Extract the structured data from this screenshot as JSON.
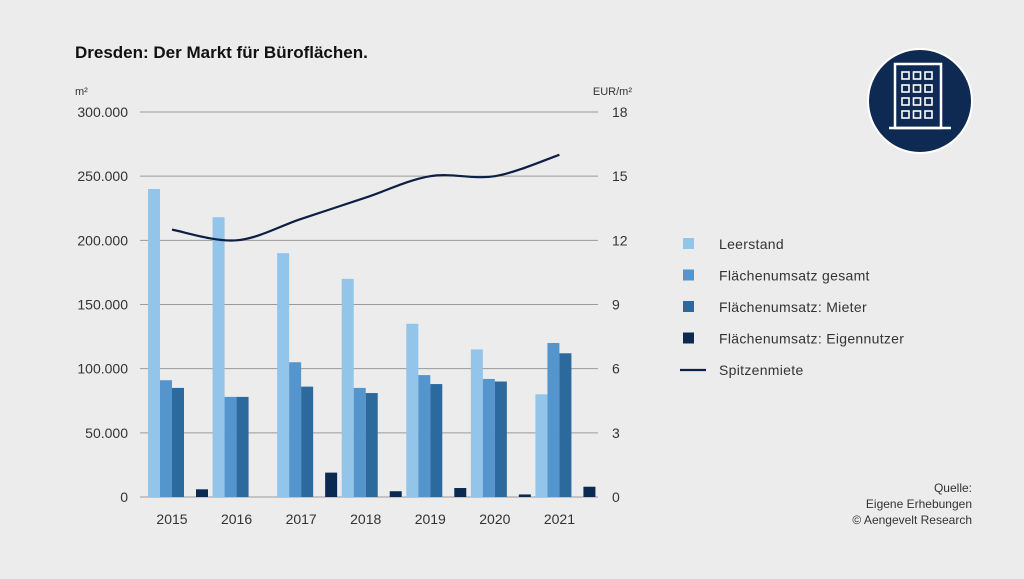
{
  "colors": {
    "background": "#ececec",
    "leerstand": "#93c4ea",
    "gesamt": "#5595cd",
    "mieter": "#2c6a9e",
    "eigennutzer": "#0b2a52",
    "spitzenmiete": "#0d1f45",
    "icon_bg": "#0f2a52"
  },
  "icon": "office-building-icon",
  "source": {
    "line1": "Quelle:",
    "line2": "Eigene Erhebungen",
    "line3": "© Aengevelt Research"
  },
  "chart_data": {
    "type": "bar",
    "title": "Dresden: Der Markt für Büroflächen.",
    "ylabel_left": "m²",
    "ylabel_right": "EUR/m²",
    "ylim_left": [
      0,
      300000
    ],
    "ylim_right": [
      0,
      18
    ],
    "yticks_left": [
      "0",
      "50.000",
      "100.000",
      "150.000",
      "200.000",
      "250.000",
      "300.000"
    ],
    "yticks_right": [
      "0",
      "3",
      "6",
      "9",
      "12",
      "15",
      "18"
    ],
    "grid": true,
    "legend_position": "right",
    "categories": [
      "2015",
      "2016",
      "2017",
      "2018",
      "2019",
      "2020",
      "2021"
    ],
    "series": [
      {
        "name": "Leerstand",
        "type": "bar",
        "axis": "left",
        "values": [
          240000,
          218000,
          190000,
          170000,
          135000,
          115000,
          80000
        ]
      },
      {
        "name": "Flächenumsatz gesamt",
        "type": "bar",
        "axis": "left",
        "values": [
          91000,
          78000,
          105000,
          85000,
          95000,
          92000,
          120000
        ]
      },
      {
        "name": "Flächenumsatz: Mieter",
        "type": "bar",
        "axis": "left",
        "values": [
          85000,
          78000,
          86000,
          81000,
          88000,
          90000,
          112000
        ]
      },
      {
        "name": "Flächenumsatz: Eigennutzer",
        "type": "bar",
        "axis": "left",
        "values": [
          6000,
          0,
          19000,
          4500,
          7000,
          2000,
          8000
        ]
      },
      {
        "name": "Spitzenmiete",
        "type": "line",
        "axis": "right",
        "values": [
          12.5,
          12.0,
          13.0,
          14.0,
          15.0,
          15.0,
          16.0
        ]
      }
    ]
  }
}
